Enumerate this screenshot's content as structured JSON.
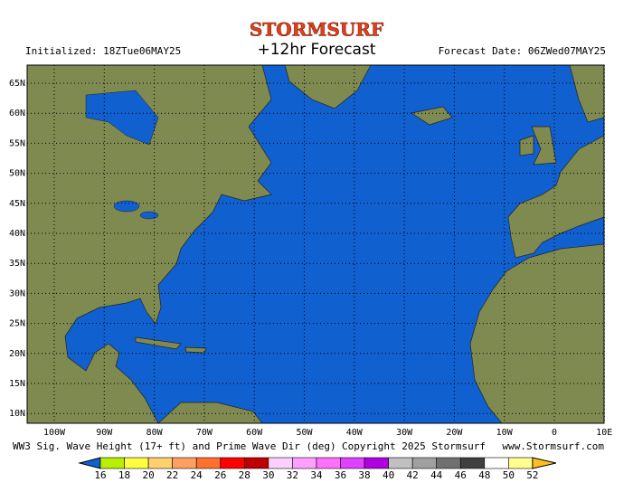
{
  "header": {
    "logo": "STORMSURF",
    "title": "+12hr Forecast",
    "initialized": "Initialized: 18ZTue06MAY25",
    "forecast_date": "Forecast Date: 06ZWed07MAY25"
  },
  "map": {
    "lat_labels": [
      "65N",
      "60N",
      "55N",
      "50N",
      "45N",
      "40N",
      "35N",
      "30N",
      "25N",
      "20N",
      "15N",
      "10N"
    ],
    "lon_labels": [
      "100W",
      "90W",
      "80W",
      "70W",
      "60W",
      "50W",
      "40W",
      "30W",
      "20W",
      "10W",
      "0",
      "10E"
    ]
  },
  "footer": {
    "left": "WW3 Sig. Wave Height (17+ ft) and Prime Wave Dir (deg)",
    "copyright": "Copyright 2025 Stormsurf",
    "url": "www.Stormsurf.com"
  },
  "legend": {
    "labels": [
      "16",
      "18",
      "20",
      "22",
      "24",
      "26",
      "28",
      "30",
      "32",
      "34",
      "36",
      "38",
      "40",
      "42",
      "44",
      "46",
      "48",
      "50",
      "52"
    ],
    "colors": [
      "#b8f000",
      "#ffff40",
      "#ffd070",
      "#ffa060",
      "#ff7030",
      "#ff0000",
      "#c00000",
      "#ffd0ff",
      "#ffa0ff",
      "#ff70ff",
      "#e040ff",
      "#b000e0",
      "#c0c0c0",
      "#a0a0a0",
      "#707070",
      "#404040",
      "#ffffff",
      "#ffff90"
    ],
    "low_color": "#1060d0",
    "high_color": "#ffc020"
  }
}
